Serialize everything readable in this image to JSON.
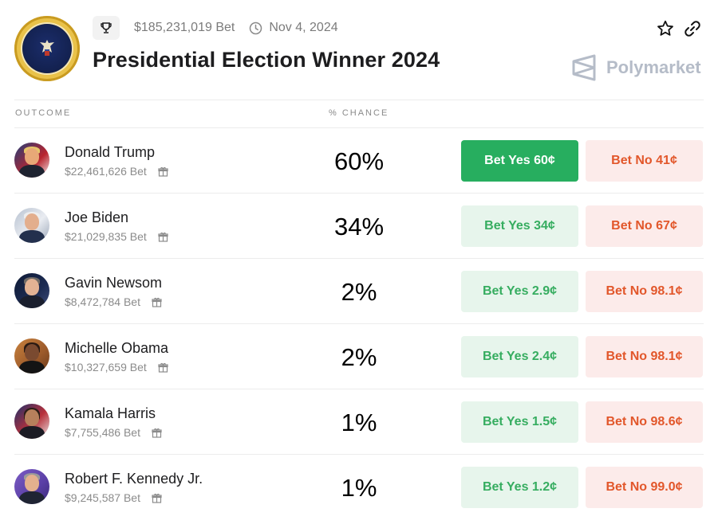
{
  "header": {
    "total_bet": "$185,231,019 Bet",
    "date": "Nov 4, 2024",
    "title": "Presidential Election Winner 2024",
    "brand": "Polymarket",
    "seal_text": "SEAL OF THE PRESIDENT OF THE UNITED STATES"
  },
  "table": {
    "col_outcome": "OUTCOME",
    "col_chance": "% CHANCE"
  },
  "colors": {
    "yes_primary": "#27ae5f",
    "yes_light_bg": "#e7f5ec",
    "yes_text": "#36ad60",
    "no_bg": "#fcebea",
    "no_text": "#e2572b"
  },
  "rows": [
    {
      "name": "Donald Trump",
      "volume": "$22,461,626 Bet",
      "chance": "60%",
      "yes_label": "Bet Yes 60¢",
      "no_label": "Bet No 41¢"
    },
    {
      "name": "Joe Biden",
      "volume": "$21,029,835 Bet",
      "chance": "34%",
      "yes_label": "Bet Yes 34¢",
      "no_label": "Bet No 67¢"
    },
    {
      "name": "Gavin Newsom",
      "volume": "$8,472,784 Bet",
      "chance": "2%",
      "yes_label": "Bet Yes 2.9¢",
      "no_label": "Bet No 98.1¢"
    },
    {
      "name": "Michelle Obama",
      "volume": "$10,327,659 Bet",
      "chance": "2%",
      "yes_label": "Bet Yes 2.4¢",
      "no_label": "Bet No 98.1¢"
    },
    {
      "name": "Kamala Harris",
      "volume": "$7,755,486 Bet",
      "chance": "1%",
      "yes_label": "Bet Yes 1.5¢",
      "no_label": "Bet No 98.6¢"
    },
    {
      "name": "Robert F. Kennedy Jr.",
      "volume": "$9,245,587 Bet",
      "chance": "1%",
      "yes_label": "Bet Yes 1.2¢",
      "no_label": "Bet No 99.0¢"
    }
  ]
}
